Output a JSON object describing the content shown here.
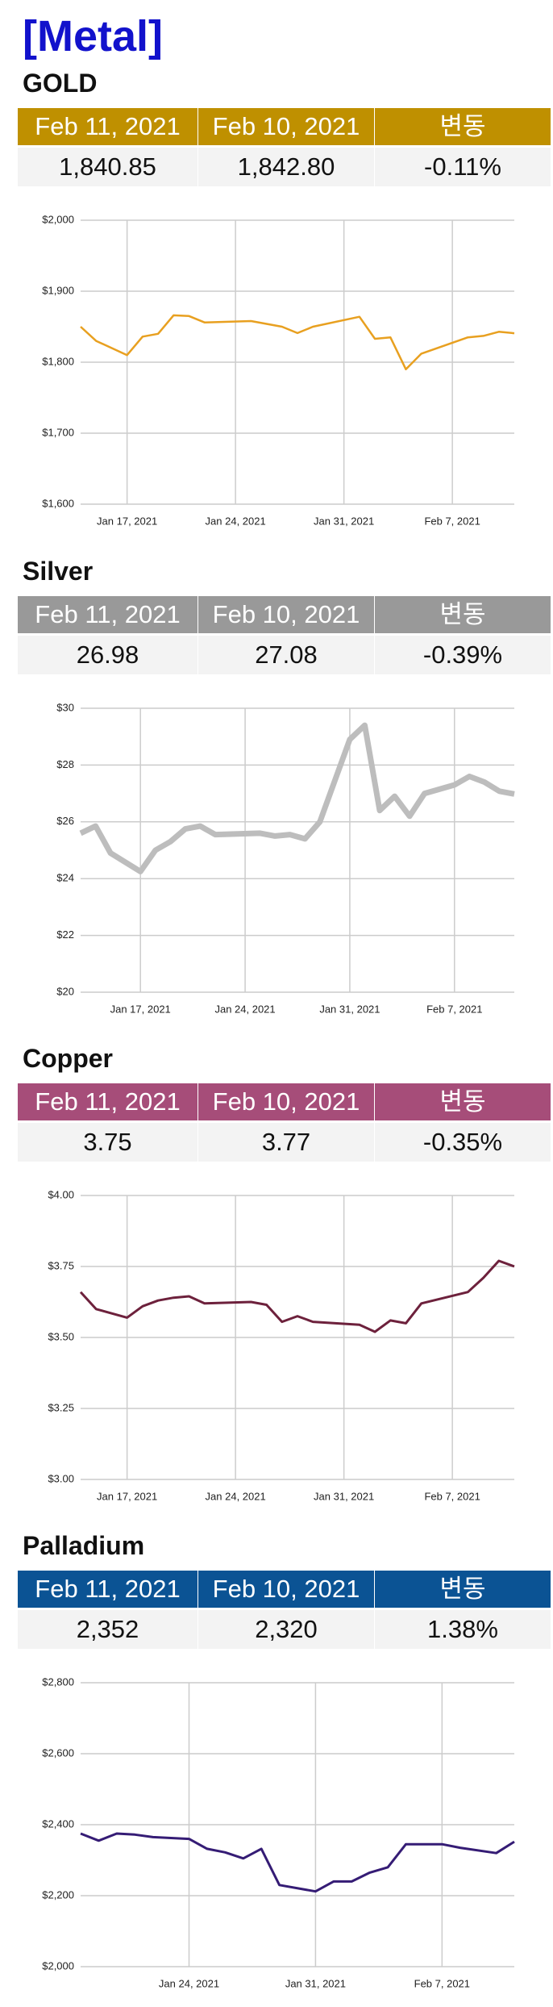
{
  "title": "[Metal]",
  "sections": [
    {
      "name": "GOLD",
      "table": {
        "headers": [
          "Feb 11, 2021",
          "Feb 10, 2021",
          "변동"
        ],
        "cells": [
          "1,840.85",
          "1,842.80",
          "-0.11%"
        ]
      }
    },
    {
      "name": "Silver",
      "table": {
        "headers": [
          "Feb 11, 2021",
          "Feb 10, 2021",
          "변동"
        ],
        "cells": [
          "26.98",
          "27.08",
          "-0.39%"
        ]
      }
    },
    {
      "name": "Copper",
      "table": {
        "headers": [
          "Feb 11, 2021",
          "Feb 10, 2021",
          "변동"
        ],
        "cells": [
          "3.75",
          "3.77",
          "-0.35%"
        ]
      }
    },
    {
      "name": "Palladium",
      "table": {
        "headers": [
          "Feb 11, 2021",
          "Feb 10, 2021",
          "변동"
        ],
        "cells": [
          "2,352",
          "2,320",
          "1.38%"
        ]
      }
    }
  ],
  "chart_data": [
    {
      "type": "line",
      "color": "#e8a020",
      "header_color": "#bf9000",
      "line_width": 2.5,
      "grid": true,
      "x": [
        "2021-01-14",
        "2021-01-15",
        "2021-01-17",
        "2021-01-18",
        "2021-01-19",
        "2021-01-20",
        "2021-01-21",
        "2021-01-22",
        "2021-01-25",
        "2021-01-27",
        "2021-01-28",
        "2021-01-29",
        "2021-02-01",
        "2021-02-02",
        "2021-02-03",
        "2021-02-04",
        "2021-02-05",
        "2021-02-08",
        "2021-02-09",
        "2021-02-10",
        "2021-02-11"
      ],
      "values": [
        1850,
        1830,
        1810,
        1836,
        1840,
        1866,
        1865,
        1856,
        1858,
        1850,
        1841,
        1850,
        1864,
        1833,
        1835,
        1790,
        1812,
        1835,
        1837,
        1842.8,
        1840.85
      ],
      "xlim": [
        "2021-01-14",
        "2021-02-11"
      ],
      "xticks": [
        {
          "value": "2021-01-17",
          "label": "Jan 17, 2021"
        },
        {
          "value": "2021-01-24",
          "label": "Jan 24, 2021"
        },
        {
          "value": "2021-01-31",
          "label": "Jan 31, 2021"
        },
        {
          "value": "2021-02-07",
          "label": "Feb 7, 2021"
        }
      ],
      "ylim": [
        1600,
        2000
      ],
      "yticks": [
        {
          "value": 1600,
          "label": "$1,600"
        },
        {
          "value": 1700,
          "label": "$1,700"
        },
        {
          "value": 1800,
          "label": "$1,800"
        },
        {
          "value": 1900,
          "label": "$1,900"
        },
        {
          "value": 2000,
          "label": "$2,000"
        }
      ]
    },
    {
      "type": "line",
      "color": "#bdbdbd",
      "header_color": "#999999",
      "line_width": 7,
      "grid": true,
      "x": [
        "2021-01-13",
        "2021-01-14",
        "2021-01-15",
        "2021-01-17",
        "2021-01-18",
        "2021-01-19",
        "2021-01-20",
        "2021-01-21",
        "2021-01-22",
        "2021-01-25",
        "2021-01-26",
        "2021-01-27",
        "2021-01-28",
        "2021-01-29",
        "2021-01-31",
        "2021-02-01",
        "2021-02-02",
        "2021-02-03",
        "2021-02-04",
        "2021-02-05",
        "2021-02-07",
        "2021-02-08",
        "2021-02-09",
        "2021-02-10",
        "2021-02-11"
      ],
      "values": [
        25.6,
        25.85,
        24.9,
        24.25,
        25.0,
        25.3,
        25.75,
        25.85,
        25.55,
        25.6,
        25.5,
        25.55,
        25.4,
        26.0,
        28.9,
        29.4,
        26.4,
        26.9,
        26.2,
        27.0,
        27.3,
        27.6,
        27.4,
        27.08,
        26.98
      ],
      "xlim": [
        "2021-01-13",
        "2021-02-11"
      ],
      "xticks": [
        {
          "value": "2021-01-17",
          "label": "Jan 17, 2021"
        },
        {
          "value": "2021-01-24",
          "label": "Jan 24, 2021"
        },
        {
          "value": "2021-01-31",
          "label": "Jan 31, 2021"
        },
        {
          "value": "2021-02-07",
          "label": "Feb 7, 2021"
        }
      ],
      "ylim": [
        20,
        30
      ],
      "yticks": [
        {
          "value": 20,
          "label": "$20"
        },
        {
          "value": 22,
          "label": "$22"
        },
        {
          "value": 24,
          "label": "$24"
        },
        {
          "value": 26,
          "label": "$26"
        },
        {
          "value": 28,
          "label": "$28"
        },
        {
          "value": 30,
          "label": "$30"
        }
      ]
    },
    {
      "type": "line",
      "color": "#6d213c",
      "header_color": "#a64d79",
      "line_width": 3,
      "grid": true,
      "x": [
        "2021-01-14",
        "2021-01-15",
        "2021-01-17",
        "2021-01-18",
        "2021-01-19",
        "2021-01-20",
        "2021-01-21",
        "2021-01-22",
        "2021-01-25",
        "2021-01-26",
        "2021-01-27",
        "2021-01-28",
        "2021-01-29",
        "2021-02-01",
        "2021-02-02",
        "2021-02-03",
        "2021-02-04",
        "2021-02-05",
        "2021-02-08",
        "2021-02-09",
        "2021-02-10",
        "2021-02-11"
      ],
      "values": [
        3.66,
        3.6,
        3.57,
        3.61,
        3.63,
        3.64,
        3.645,
        3.62,
        3.625,
        3.615,
        3.555,
        3.575,
        3.555,
        3.545,
        3.52,
        3.56,
        3.55,
        3.62,
        3.66,
        3.71,
        3.77,
        3.75
      ],
      "xlim": [
        "2021-01-14",
        "2021-02-11"
      ],
      "xticks": [
        {
          "value": "2021-01-17",
          "label": "Jan 17, 2021"
        },
        {
          "value": "2021-01-24",
          "label": "Jan 24, 2021"
        },
        {
          "value": "2021-01-31",
          "label": "Jan 31, 2021"
        },
        {
          "value": "2021-02-07",
          "label": "Feb 7, 2021"
        }
      ],
      "ylim": [
        3,
        4
      ],
      "yticks": [
        {
          "value": 3,
          "label": "$3.00"
        },
        {
          "value": 3.25,
          "label": "$3.25"
        },
        {
          "value": 3.5,
          "label": "$3.50"
        },
        {
          "value": 3.75,
          "label": "$3.75"
        },
        {
          "value": 4,
          "label": "$4.00"
        }
      ]
    },
    {
      "type": "line",
      "color": "#351c75",
      "header_color": "#0b5394",
      "line_width": 3,
      "grid": true,
      "x": [
        "2021-01-18",
        "2021-01-19",
        "2021-01-20",
        "2021-01-21",
        "2021-01-22",
        "2021-01-24",
        "2021-01-25",
        "2021-01-26",
        "2021-01-27",
        "2021-01-28",
        "2021-01-29",
        "2021-01-31",
        "2021-02-01",
        "2021-02-02",
        "2021-02-03",
        "2021-02-04",
        "2021-02-05",
        "2021-02-07",
        "2021-02-08",
        "2021-02-10",
        "2021-02-11"
      ],
      "values": [
        2375,
        2355,
        2375,
        2372,
        2365,
        2360,
        2332,
        2322,
        2305,
        2332,
        2230,
        2212,
        2240,
        2240,
        2265,
        2280,
        2345,
        2345,
        2335,
        2320,
        2352
      ],
      "xlim": [
        "2021-01-18",
        "2021-02-11"
      ],
      "xticks": [
        {
          "value": "2021-01-24",
          "label": "Jan 24, 2021"
        },
        {
          "value": "2021-01-31",
          "label": "Jan 31, 2021"
        },
        {
          "value": "2021-02-07",
          "label": "Feb 7, 2021"
        }
      ],
      "ylim": [
        2000,
        2800
      ],
      "yticks": [
        {
          "value": 2000,
          "label": "$2,000"
        },
        {
          "value": 2200,
          "label": "$2,200"
        },
        {
          "value": 2400,
          "label": "$2,400"
        },
        {
          "value": 2600,
          "label": "$2,600"
        },
        {
          "value": 2800,
          "label": "$2,800"
        }
      ]
    }
  ]
}
